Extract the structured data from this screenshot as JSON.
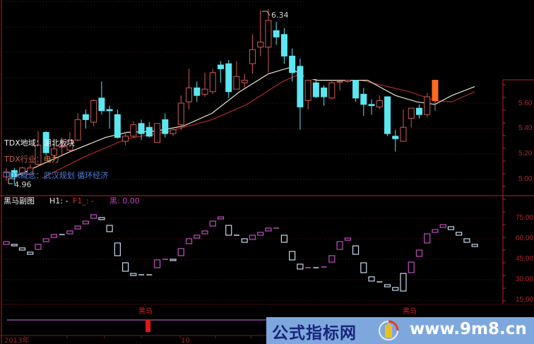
{
  "colors": {
    "up": "#d05a5a",
    "down": "#5ce6f0",
    "signal_bar": "#ff6a20",
    "ma_short": "#e8e4c8",
    "ma_long": "#b02828",
    "ind_up": "#c050c0",
    "ind_down": "#c8d8e8",
    "axis": "#c02020",
    "grid": "#5a1818"
  },
  "main": {
    "region_label": "TDX地域：湖北板块",
    "industry_prefix": "TDX行业：",
    "industry_value": "电力",
    "concept_label": "TDX概念：武汉规划 循环经济",
    "high_label": "6.34",
    "low_label": "4.96",
    "y_ticks": [
      "5.60",
      "5.40",
      "5.20",
      "5.00"
    ]
  },
  "sub": {
    "title": "黑马副图",
    "h1": "H1: -",
    "f1": "F1_: -",
    "hei": "黑: 0.00",
    "y_ticks": [
      "75.00",
      "60.00",
      "45.00",
      "30.00",
      "15.00"
    ]
  },
  "signal": {
    "labels": [
      "黑马",
      "黑马"
    ]
  },
  "x_axis": {
    "labels": [
      "2013年",
      "10"
    ]
  },
  "watermark": {
    "site_name": "公式指标网",
    "url": "www.9m8.cn"
  },
  "chart_data": [
    {
      "type": "candlestick",
      "ylim": [
        4.85,
        6.45
      ],
      "y_ticks": [
        5.0,
        5.2,
        5.4,
        5.6
      ],
      "grid": true,
      "ohlc": [
        [
          5.02,
          5.09,
          4.99,
          5.06
        ],
        [
          5.07,
          5.09,
          4.96,
          5.02
        ],
        [
          5.05,
          5.1,
          5.03,
          5.09
        ],
        [
          5.04,
          5.12,
          5.03,
          5.09
        ],
        [
          5.12,
          5.38,
          5.1,
          5.27
        ],
        [
          5.37,
          5.38,
          5.19,
          5.21
        ],
        [
          5.19,
          5.32,
          5.16,
          5.24
        ],
        [
          5.26,
          5.33,
          5.19,
          5.26
        ],
        [
          5.23,
          5.37,
          5.22,
          5.31
        ],
        [
          5.31,
          5.52,
          5.3,
          5.47
        ],
        [
          5.51,
          5.55,
          5.4,
          5.47
        ],
        [
          5.45,
          5.63,
          5.42,
          5.62
        ],
        [
          5.64,
          5.77,
          5.51,
          5.54
        ],
        [
          5.55,
          5.58,
          5.4,
          5.54
        ],
        [
          5.51,
          5.55,
          5.32,
          5.33
        ],
        [
          5.3,
          5.37,
          5.27,
          5.34
        ],
        [
          5.34,
          5.46,
          5.33,
          5.43
        ],
        [
          5.44,
          5.47,
          5.31,
          5.36
        ],
        [
          5.41,
          5.45,
          5.33,
          5.34
        ],
        [
          5.29,
          5.44,
          5.29,
          5.44
        ],
        [
          5.47,
          5.52,
          5.33,
          5.36
        ],
        [
          5.36,
          5.41,
          5.34,
          5.39
        ],
        [
          5.43,
          5.66,
          5.39,
          5.6
        ],
        [
          5.61,
          5.87,
          5.55,
          5.72
        ],
        [
          5.72,
          5.77,
          5.61,
          5.66
        ],
        [
          5.67,
          5.84,
          5.65,
          5.71
        ],
        [
          5.69,
          5.87,
          5.67,
          5.84
        ],
        [
          5.9,
          5.93,
          5.76,
          5.87
        ],
        [
          5.91,
          5.94,
          5.64,
          5.69
        ],
        [
          5.71,
          5.93,
          5.71,
          5.81
        ],
        [
          5.76,
          5.83,
          5.72,
          5.78
        ],
        [
          5.91,
          6.14,
          5.83,
          6.02
        ],
        [
          6.04,
          6.33,
          5.97,
          6.08
        ],
        [
          6.04,
          6.34,
          5.84,
          6.25
        ],
        [
          6.17,
          6.24,
          6.06,
          6.12
        ],
        [
          6.14,
          6.19,
          5.91,
          5.97
        ],
        [
          5.97,
          6.03,
          5.77,
          5.84
        ],
        [
          5.89,
          5.95,
          5.39,
          5.57
        ],
        [
          5.62,
          5.78,
          5.55,
          5.78
        ],
        [
          5.76,
          5.78,
          5.64,
          5.65
        ],
        [
          5.72,
          5.74,
          5.58,
          5.65
        ],
        [
          5.64,
          5.78,
          5.63,
          5.76
        ],
        [
          5.77,
          5.78,
          5.7,
          5.77
        ],
        [
          5.77,
          5.78,
          5.76,
          5.78
        ],
        [
          5.78,
          5.78,
          5.61,
          5.64
        ],
        [
          5.67,
          5.72,
          5.5,
          5.59
        ],
        [
          5.59,
          5.63,
          5.51,
          5.58
        ],
        [
          5.57,
          5.66,
          5.55,
          5.62
        ],
        [
          5.65,
          5.65,
          5.34,
          5.36
        ],
        [
          5.34,
          5.39,
          5.22,
          5.32
        ],
        [
          5.3,
          5.55,
          5.3,
          5.41
        ],
        [
          5.48,
          5.56,
          5.41,
          5.56
        ],
        [
          5.56,
          5.59,
          5.48,
          5.51
        ],
        [
          5.51,
          5.68,
          5.49,
          5.65
        ],
        [
          5.62,
          5.78,
          5.54,
          5.78
        ]
      ],
      "signal_index": 54,
      "ma_short": [
        [
          1,
          5.02
        ],
        [
          4.5,
          5.12
        ],
        [
          8.1,
          5.22
        ],
        [
          12.5,
          5.33
        ],
        [
          15.2,
          5.37
        ],
        [
          18.8,
          5.38
        ],
        [
          22.3,
          5.42
        ],
        [
          25.9,
          5.52
        ],
        [
          29.4,
          5.69
        ],
        [
          33,
          5.83
        ],
        [
          35.7,
          5.88
        ],
        [
          37.5,
          5.81
        ],
        [
          39.2,
          5.78
        ],
        [
          45.5,
          5.78
        ],
        [
          49,
          5.66
        ],
        [
          51.7,
          5.61
        ],
        [
          54,
          5.59
        ],
        [
          56.1,
          5.66
        ],
        [
          59,
          5.73
        ]
      ],
      "ma_long": [
        [
          4.5,
          5.01
        ],
        [
          9.9,
          5.18
        ],
        [
          15.2,
          5.32
        ],
        [
          20.6,
          5.38
        ],
        [
          25.9,
          5.47
        ],
        [
          30.3,
          5.59
        ],
        [
          34.8,
          5.77
        ],
        [
          37,
          5.83
        ],
        [
          38.8,
          5.78
        ],
        [
          44.6,
          5.78
        ],
        [
          50.8,
          5.69
        ],
        [
          54,
          5.62
        ],
        [
          56.1,
          5.61
        ],
        [
          59,
          5.69
        ]
      ]
    },
    {
      "type": "indicator-boxes",
      "title": "黑马副图",
      "ylim": [
        10,
        80
      ],
      "y_ticks": [
        75,
        60,
        45,
        30,
        15
      ],
      "grid": true,
      "boxes": [
        [
          57.9,
          55.9,
          "up"
        ],
        [
          55.9,
          54.8,
          "down"
        ],
        [
          53.3,
          51.7,
          "down"
        ],
        [
          50.2,
          48.6,
          "down"
        ],
        [
          55.9,
          52.2,
          "up"
        ],
        [
          60.0,
          57.9,
          "up"
        ],
        [
          63.1,
          61.0,
          "up"
        ],
        [
          63.1,
          62.6,
          "down"
        ],
        [
          65.7,
          63.6,
          "up"
        ],
        [
          69.3,
          67.2,
          "up"
        ],
        [
          72.9,
          70.9,
          "up"
        ],
        [
          77.6,
          75.0,
          "up"
        ],
        [
          75.5,
          74.0,
          "down"
        ],
        [
          69.8,
          65.2,
          "down"
        ],
        [
          56.9,
          47.6,
          "down"
        ],
        [
          42.4,
          36.2,
          "down"
        ],
        [
          34.6,
          33.1,
          "down"
        ],
        [
          33.6,
          33.6,
          "down"
        ],
        [
          33.6,
          33.6,
          "down"
        ],
        [
          44.5,
          38.8,
          "up"
        ],
        [
          45.0,
          45.0,
          "up"
        ],
        [
          45.0,
          44.0,
          "down"
        ],
        [
          52.8,
          47.6,
          "up"
        ],
        [
          60.0,
          56.4,
          "up"
        ],
        [
          62.6,
          60.5,
          "up"
        ],
        [
          65.7,
          63.6,
          "up"
        ],
        [
          72.9,
          69.3,
          "up"
        ],
        [
          76.0,
          74.5,
          "up"
        ],
        [
          69.8,
          62.6,
          "down"
        ],
        [
          62.6,
          62.6,
          "down"
        ],
        [
          60.0,
          57.4,
          "down"
        ],
        [
          62.6,
          59.5,
          "up"
        ],
        [
          64.7,
          62.6,
          "up"
        ],
        [
          67.8,
          65.7,
          "up"
        ],
        [
          67.8,
          67.8,
          "up"
        ],
        [
          62.6,
          57.4,
          "down"
        ],
        [
          50.7,
          44.5,
          "down"
        ],
        [
          41.4,
          37.8,
          "down"
        ],
        [
          38.8,
          38.8,
          "up"
        ],
        [
          38.8,
          38.8,
          "down"
        ],
        [
          39.3,
          39.3,
          "up"
        ],
        [
          47.6,
          42.9,
          "up"
        ],
        [
          57.9,
          52.2,
          "up"
        ],
        [
          60.5,
          58.9,
          "up"
        ],
        [
          54.8,
          48.6,
          "down"
        ],
        [
          42.4,
          35.2,
          "down"
        ],
        [
          32.1,
          29.0,
          "down"
        ],
        [
          28.4,
          28.4,
          "down"
        ],
        [
          26.4,
          24.8,
          "down"
        ],
        [
          24.3,
          22.2,
          "down"
        ],
        [
          34.6,
          21.7,
          "down"
        ],
        [
          42.9,
          35.2,
          "up"
        ],
        [
          51.7,
          47.1,
          "up"
        ],
        [
          63.6,
          56.9,
          "up"
        ],
        [
          66.7,
          64.7,
          "up"
        ],
        [
          70.3,
          68.3,
          "up"
        ],
        [
          68.8,
          66.7,
          "down"
        ],
        [
          64.7,
          62.6,
          "down"
        ],
        [
          60.0,
          57.4,
          "down"
        ],
        [
          55.9,
          54.3,
          "down"
        ]
      ]
    },
    {
      "type": "signal",
      "signal_indices": [
        17,
        51
      ]
    }
  ]
}
